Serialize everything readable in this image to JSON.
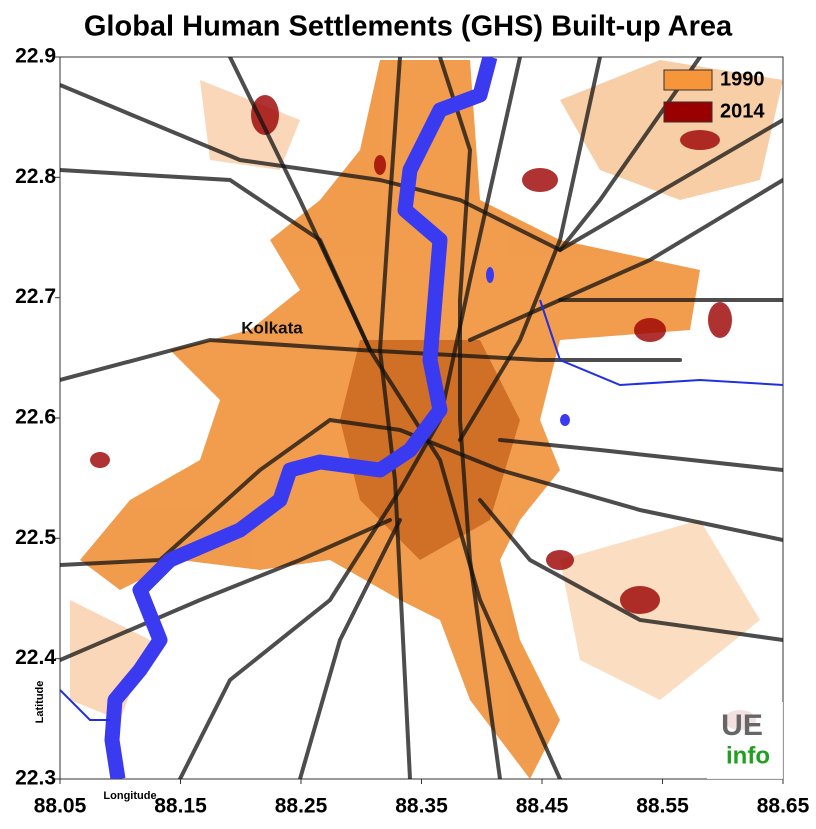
{
  "title": "Global Human Settlements (GHS) Built-up Area",
  "axes": {
    "xlim": [
      88.05,
      88.65
    ],
    "xticks": [
      88.05,
      88.15,
      88.25,
      88.35,
      88.45,
      88.55,
      88.65
    ],
    "ylim": [
      22.3,
      22.9
    ],
    "yticks": [
      22.3,
      22.4,
      22.5,
      22.6,
      22.7,
      22.8,
      22.9
    ],
    "xlabel": "Longitude",
    "ylabel": "Latitude"
  },
  "legend": [
    {
      "name": "1990",
      "color": "#f7953b"
    },
    {
      "name": "2014",
      "color": "#9b0000"
    }
  ],
  "place_label": "Kolkata",
  "logo": {
    "top": "UE",
    "bottom": "info"
  }
}
